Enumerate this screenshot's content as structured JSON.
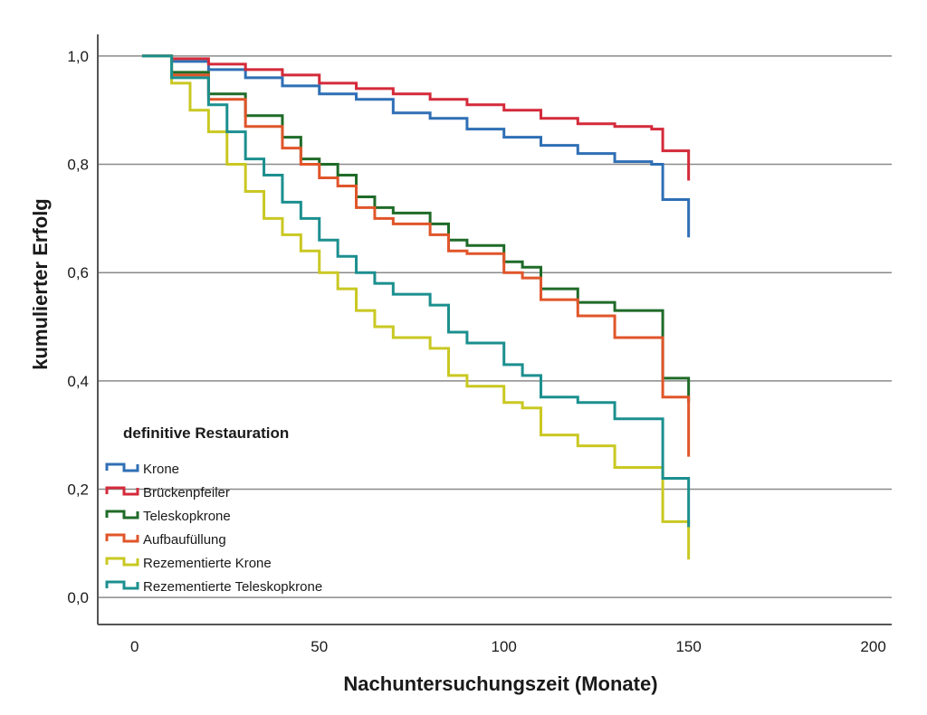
{
  "chart_data": {
    "type": "line",
    "step": true,
    "xlabel": "Nachuntersuchungszeit (Monate)",
    "ylabel": "kumulierter Erfolg",
    "xlim": [
      -10,
      205
    ],
    "ylim": [
      -0.05,
      1.04
    ],
    "xticks": [
      0,
      50,
      100,
      150,
      200
    ],
    "yticks": [
      0.0,
      0.2,
      0.4,
      0.6,
      0.8,
      1.0
    ],
    "ytick_labels": [
      "0,0",
      "0,2",
      "0,4",
      "0,6",
      "0,8",
      "1,0"
    ],
    "grid": "horizontal",
    "legend": {
      "title": "definitive Restauration",
      "position": "lower-left"
    },
    "series": [
      {
        "name": "Krone",
        "color": "#2f6fb5",
        "points": [
          [
            2,
            1.0
          ],
          [
            10,
            0.99
          ],
          [
            20,
            0.975
          ],
          [
            30,
            0.96
          ],
          [
            40,
            0.945
          ],
          [
            50,
            0.93
          ],
          [
            60,
            0.92
          ],
          [
            70,
            0.895
          ],
          [
            80,
            0.885
          ],
          [
            90,
            0.865
          ],
          [
            100,
            0.85
          ],
          [
            110,
            0.835
          ],
          [
            120,
            0.82
          ],
          [
            130,
            0.805
          ],
          [
            140,
            0.8
          ],
          [
            143,
            0.8
          ],
          [
            143,
            0.735
          ],
          [
            150,
            0.735
          ],
          [
            150,
            0.665
          ]
        ]
      },
      {
        "name": "Brückenpfeiler",
        "color": "#d42a3a",
        "points": [
          [
            2,
            1.0
          ],
          [
            10,
            0.995
          ],
          [
            20,
            0.985
          ],
          [
            30,
            0.975
          ],
          [
            40,
            0.965
          ],
          [
            50,
            0.95
          ],
          [
            60,
            0.94
          ],
          [
            70,
            0.93
          ],
          [
            80,
            0.92
          ],
          [
            90,
            0.91
          ],
          [
            100,
            0.9
          ],
          [
            110,
            0.885
          ],
          [
            120,
            0.875
          ],
          [
            130,
            0.87
          ],
          [
            140,
            0.865
          ],
          [
            143,
            0.865
          ],
          [
            143,
            0.825
          ],
          [
            150,
            0.825
          ],
          [
            150,
            0.77
          ]
        ]
      },
      {
        "name": "Teleskopkrone",
        "color": "#1f6b28",
        "points": [
          [
            2,
            1.0
          ],
          [
            10,
            0.97
          ],
          [
            20,
            0.93
          ],
          [
            30,
            0.89
          ],
          [
            40,
            0.85
          ],
          [
            45,
            0.81
          ],
          [
            50,
            0.8
          ],
          [
            55,
            0.78
          ],
          [
            60,
            0.74
          ],
          [
            65,
            0.72
          ],
          [
            70,
            0.71
          ],
          [
            80,
            0.69
          ],
          [
            85,
            0.66
          ],
          [
            90,
            0.65
          ],
          [
            100,
            0.62
          ],
          [
            105,
            0.61
          ],
          [
            110,
            0.57
          ],
          [
            120,
            0.545
          ],
          [
            130,
            0.53
          ],
          [
            143,
            0.515
          ],
          [
            143,
            0.405
          ],
          [
            150,
            0.405
          ],
          [
            150,
            0.36
          ]
        ]
      },
      {
        "name": "Aufbaufüllung",
        "color": "#e0552a",
        "points": [
          [
            2,
            1.0
          ],
          [
            10,
            0.965
          ],
          [
            20,
            0.92
          ],
          [
            30,
            0.87
          ],
          [
            40,
            0.83
          ],
          [
            45,
            0.8
          ],
          [
            50,
            0.775
          ],
          [
            55,
            0.76
          ],
          [
            60,
            0.72
          ],
          [
            65,
            0.7
          ],
          [
            70,
            0.69
          ],
          [
            80,
            0.67
          ],
          [
            85,
            0.64
          ],
          [
            90,
            0.635
          ],
          [
            100,
            0.6
          ],
          [
            105,
            0.59
          ],
          [
            110,
            0.55
          ],
          [
            120,
            0.52
          ],
          [
            130,
            0.48
          ],
          [
            143,
            0.48
          ],
          [
            143,
            0.37
          ],
          [
            150,
            0.37
          ],
          [
            150,
            0.26
          ]
        ]
      },
      {
        "name": "Rezementierte Krone",
        "color": "#c9c822",
        "points": [
          [
            2,
            1.0
          ],
          [
            10,
            0.95
          ],
          [
            15,
            0.9
          ],
          [
            20,
            0.86
          ],
          [
            25,
            0.8
          ],
          [
            30,
            0.75
          ],
          [
            35,
            0.7
          ],
          [
            40,
            0.67
          ],
          [
            45,
            0.64
          ],
          [
            50,
            0.6
          ],
          [
            55,
            0.57
          ],
          [
            60,
            0.53
          ],
          [
            65,
            0.5
          ],
          [
            70,
            0.48
          ],
          [
            80,
            0.46
          ],
          [
            85,
            0.41
          ],
          [
            90,
            0.39
          ],
          [
            100,
            0.36
          ],
          [
            105,
            0.35
          ],
          [
            110,
            0.3
          ],
          [
            120,
            0.28
          ],
          [
            130,
            0.24
          ],
          [
            143,
            0.24
          ],
          [
            143,
            0.14
          ],
          [
            150,
            0.14
          ],
          [
            150,
            0.07
          ]
        ]
      },
      {
        "name": "Rezementierte Teleskopkrone",
        "color": "#1c8f8f",
        "points": [
          [
            2,
            1.0
          ],
          [
            10,
            0.96
          ],
          [
            20,
            0.91
          ],
          [
            25,
            0.86
          ],
          [
            30,
            0.81
          ],
          [
            35,
            0.78
          ],
          [
            40,
            0.73
          ],
          [
            45,
            0.7
          ],
          [
            50,
            0.66
          ],
          [
            55,
            0.63
          ],
          [
            60,
            0.6
          ],
          [
            65,
            0.58
          ],
          [
            70,
            0.56
          ],
          [
            80,
            0.54
          ],
          [
            85,
            0.49
          ],
          [
            90,
            0.47
          ],
          [
            100,
            0.43
          ],
          [
            105,
            0.41
          ],
          [
            110,
            0.37
          ],
          [
            120,
            0.36
          ],
          [
            130,
            0.33
          ],
          [
            143,
            0.33
          ],
          [
            143,
            0.22
          ],
          [
            150,
            0.22
          ],
          [
            150,
            0.13
          ]
        ]
      }
    ]
  }
}
